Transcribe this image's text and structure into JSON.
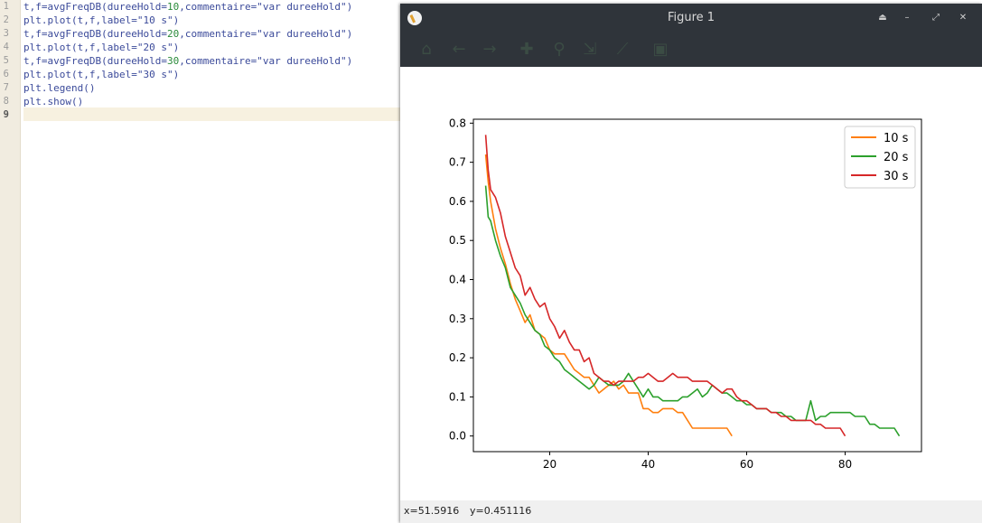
{
  "editor": {
    "line_numbers": [
      "1",
      "2",
      "3",
      "4",
      "5",
      "6",
      "7",
      "8",
      "9"
    ],
    "lines": [
      {
        "a": "t,f=avgFreqDB(dureeHold=",
        "num": "10",
        "b": ",commentaire=\"var dureeHold\")"
      },
      {
        "a": "plt.plot(t,f,label=\"10 s\")",
        "num": "",
        "b": ""
      },
      {
        "a": "t,f=avgFreqDB(dureeHold=",
        "num": "20",
        "b": ",commentaire=\"var dureeHold\")"
      },
      {
        "a": "plt.plot(t,f,label=\"20 s\")",
        "num": "",
        "b": ""
      },
      {
        "a": "t,f=avgFreqDB(dureeHold=",
        "num": "30",
        "b": ",commentaire=\"var dureeHold\")"
      },
      {
        "a": "plt.plot(t,f,label=\"30 s\")",
        "num": "",
        "b": ""
      },
      {
        "a": "plt.legend()",
        "num": "",
        "b": ""
      },
      {
        "a": "plt.show()",
        "num": "",
        "b": ""
      },
      {
        "a": "",
        "num": "",
        "b": ""
      }
    ]
  },
  "window": {
    "title": "Figure 1",
    "buttons": [
      "⏏",
      "–",
      "⤢",
      "✕"
    ],
    "toolbar_icons": [
      "home-icon",
      "back-arrow-icon",
      "forward-arrow-icon",
      "pan-icon",
      "zoom-icon",
      "subplots-icon",
      "edit-axes-icon",
      "save-icon"
    ]
  },
  "status": {
    "x": "x=51.5916",
    "y": "y=0.451116"
  },
  "chart_data": {
    "type": "line",
    "title": "",
    "xlabel": "",
    "ylabel": "",
    "xlim": [
      4.5,
      95.5
    ],
    "ylim": [
      -0.04,
      0.81
    ],
    "xticks": [
      20,
      40,
      60,
      80
    ],
    "yticks": [
      0.0,
      0.1,
      0.2,
      0.3,
      0.4,
      0.5,
      0.6,
      0.7,
      0.8
    ],
    "xtick_labels": [
      "20",
      "40",
      "60",
      "80"
    ],
    "ytick_labels": [
      "0.0",
      "0.1",
      "0.2",
      "0.3",
      "0.4",
      "0.5",
      "0.6",
      "0.7",
      "0.8"
    ],
    "grid": false,
    "legend": "top-right",
    "series": [
      {
        "name": "10 s",
        "color": "#ff7f0e",
        "x": [
          7,
          7.5,
          8,
          9,
          10,
          11,
          12,
          13,
          14,
          15,
          16,
          17,
          18,
          19,
          20,
          21,
          22,
          23,
          24,
          25,
          26,
          27,
          28,
          29,
          30,
          31,
          32,
          33,
          34,
          35,
          36,
          37,
          38,
          39,
          40,
          41,
          42,
          43,
          44,
          45,
          46,
          47,
          48,
          49,
          50,
          52,
          54,
          56,
          57
        ],
        "y": [
          0.72,
          0.65,
          0.6,
          0.53,
          0.48,
          0.44,
          0.39,
          0.35,
          0.32,
          0.29,
          0.31,
          0.27,
          0.26,
          0.25,
          0.22,
          0.21,
          0.21,
          0.21,
          0.19,
          0.17,
          0.16,
          0.15,
          0.15,
          0.13,
          0.11,
          0.12,
          0.13,
          0.14,
          0.12,
          0.13,
          0.11,
          0.11,
          0.11,
          0.07,
          0.07,
          0.06,
          0.06,
          0.07,
          0.07,
          0.07,
          0.06,
          0.06,
          0.04,
          0.02,
          0.02,
          0.02,
          0.02,
          0.02,
          0.0
        ]
      },
      {
        "name": "20 s",
        "color": "#2ca02c",
        "x": [
          7,
          7.5,
          8,
          9,
          10,
          11,
          12,
          13,
          14,
          15,
          16,
          17,
          18,
          19,
          20,
          21,
          22,
          23,
          24,
          25,
          26,
          27,
          28,
          29,
          30,
          31,
          32,
          33,
          34,
          35,
          36,
          37,
          38,
          39,
          40,
          41,
          42,
          43,
          44,
          45,
          46,
          47,
          48,
          49,
          50,
          51,
          52,
          53,
          54,
          55,
          56,
          57,
          58,
          59,
          60,
          61,
          62,
          63,
          64,
          65,
          66,
          67,
          68,
          69,
          70,
          71,
          72,
          73,
          74,
          75,
          76,
          77,
          78,
          79,
          80,
          81,
          82,
          83,
          84,
          85,
          86,
          87,
          88,
          89,
          90,
          91
        ],
        "y": [
          0.64,
          0.56,
          0.55,
          0.5,
          0.46,
          0.43,
          0.38,
          0.36,
          0.34,
          0.31,
          0.29,
          0.27,
          0.26,
          0.23,
          0.22,
          0.2,
          0.19,
          0.17,
          0.16,
          0.15,
          0.14,
          0.13,
          0.12,
          0.13,
          0.15,
          0.14,
          0.13,
          0.13,
          0.13,
          0.14,
          0.16,
          0.14,
          0.12,
          0.1,
          0.12,
          0.1,
          0.1,
          0.09,
          0.09,
          0.09,
          0.09,
          0.1,
          0.1,
          0.11,
          0.12,
          0.1,
          0.11,
          0.13,
          0.12,
          0.11,
          0.11,
          0.1,
          0.09,
          0.09,
          0.08,
          0.08,
          0.07,
          0.07,
          0.07,
          0.06,
          0.06,
          0.06,
          0.05,
          0.05,
          0.04,
          0.04,
          0.04,
          0.09,
          0.04,
          0.05,
          0.05,
          0.06,
          0.06,
          0.06,
          0.06,
          0.06,
          0.05,
          0.05,
          0.05,
          0.03,
          0.03,
          0.02,
          0.02,
          0.02,
          0.02,
          0.0
        ]
      },
      {
        "name": "30 s",
        "color": "#d62728",
        "x": [
          7,
          7.5,
          8,
          9,
          10,
          11,
          12,
          13,
          14,
          15,
          16,
          17,
          18,
          19,
          20,
          21,
          22,
          23,
          24,
          25,
          26,
          27,
          28,
          29,
          30,
          31,
          32,
          33,
          34,
          35,
          36,
          37,
          38,
          39,
          40,
          41,
          42,
          43,
          44,
          45,
          46,
          47,
          48,
          49,
          50,
          51,
          52,
          53,
          54,
          55,
          56,
          57,
          58,
          59,
          60,
          61,
          62,
          63,
          64,
          65,
          66,
          67,
          68,
          69,
          70,
          71,
          72,
          73,
          74,
          75,
          76,
          77,
          78,
          79,
          80
        ],
        "y": [
          0.77,
          0.68,
          0.63,
          0.61,
          0.57,
          0.51,
          0.47,
          0.43,
          0.41,
          0.36,
          0.38,
          0.35,
          0.33,
          0.34,
          0.3,
          0.28,
          0.25,
          0.27,
          0.24,
          0.22,
          0.22,
          0.19,
          0.2,
          0.16,
          0.15,
          0.14,
          0.14,
          0.13,
          0.14,
          0.14,
          0.14,
          0.14,
          0.15,
          0.15,
          0.16,
          0.15,
          0.14,
          0.14,
          0.15,
          0.16,
          0.15,
          0.15,
          0.15,
          0.14,
          0.14,
          0.14,
          0.14,
          0.13,
          0.12,
          0.11,
          0.12,
          0.12,
          0.1,
          0.09,
          0.09,
          0.08,
          0.07,
          0.07,
          0.07,
          0.06,
          0.06,
          0.05,
          0.05,
          0.04,
          0.04,
          0.04,
          0.04,
          0.04,
          0.03,
          0.03,
          0.02,
          0.02,
          0.02,
          0.02,
          0.0
        ]
      }
    ]
  }
}
